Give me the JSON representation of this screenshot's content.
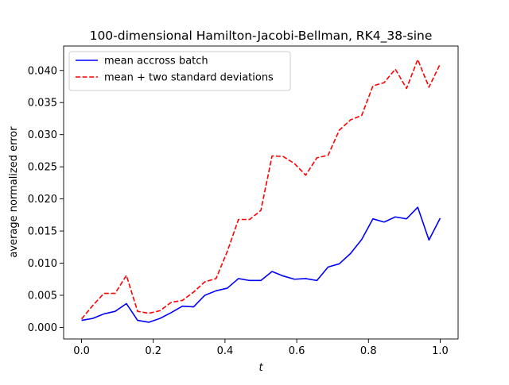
{
  "chart_data": {
    "type": "line",
    "title": "100-dimensional Hamilton-Jacobi-Bellman, RK4_38-sine",
    "xlabel": "t",
    "ylabel": "average normalized error",
    "xlim": [
      -0.05,
      1.05
    ],
    "ylim": [
      -0.0018,
      0.0438
    ],
    "grid": false,
    "legend_position": "top-left",
    "x_ticks": [
      0.0,
      0.2,
      0.4,
      0.6,
      0.8,
      1.0
    ],
    "x_tick_labels": [
      "0.0",
      "0.2",
      "0.4",
      "0.6",
      "0.8",
      "1.0"
    ],
    "y_ticks": [
      0.0,
      0.005,
      0.01,
      0.015,
      0.02,
      0.025,
      0.03,
      0.035,
      0.04
    ],
    "y_tick_labels": [
      "0.000",
      "0.005",
      "0.010",
      "0.015",
      "0.020",
      "0.025",
      "0.030",
      "0.035",
      "0.040"
    ],
    "x": [
      0.0,
      0.03125,
      0.0625,
      0.09375,
      0.125,
      0.15625,
      0.1875,
      0.21875,
      0.25,
      0.28125,
      0.3125,
      0.34375,
      0.375,
      0.40625,
      0.4375,
      0.46875,
      0.5,
      0.53125,
      0.5625,
      0.59375,
      0.625,
      0.65625,
      0.6875,
      0.71875,
      0.75,
      0.78125,
      0.8125,
      0.84375,
      0.875,
      0.90625,
      0.9375,
      0.96875,
      1.0
    ],
    "series": [
      {
        "name": "mean accross batch",
        "color": "#0000ff",
        "style": "solid",
        "values": [
          0.0011,
          0.0014,
          0.0021,
          0.0025,
          0.0037,
          0.0011,
          0.0008,
          0.0014,
          0.0023,
          0.0033,
          0.0032,
          0.005,
          0.0057,
          0.0061,
          0.0076,
          0.0073,
          0.0073,
          0.0087,
          0.008,
          0.0075,
          0.0076,
          0.0073,
          0.0094,
          0.0099,
          0.0115,
          0.0137,
          0.0169,
          0.0164,
          0.0172,
          0.0169,
          0.0187,
          0.0136,
          0.017
        ]
      },
      {
        "name": "mean + two standard deviations",
        "color": "#ff0000",
        "style": "dashed",
        "values": [
          0.0013,
          0.0034,
          0.0053,
          0.0053,
          0.0081,
          0.0025,
          0.0022,
          0.0026,
          0.0039,
          0.0042,
          0.0055,
          0.0071,
          0.0076,
          0.0118,
          0.0168,
          0.0168,
          0.0182,
          0.0267,
          0.0266,
          0.0255,
          0.0237,
          0.0264,
          0.0268,
          0.0307,
          0.0323,
          0.033,
          0.0376,
          0.0381,
          0.0402,
          0.0372,
          0.0417,
          0.0374,
          0.041
        ]
      }
    ]
  }
}
